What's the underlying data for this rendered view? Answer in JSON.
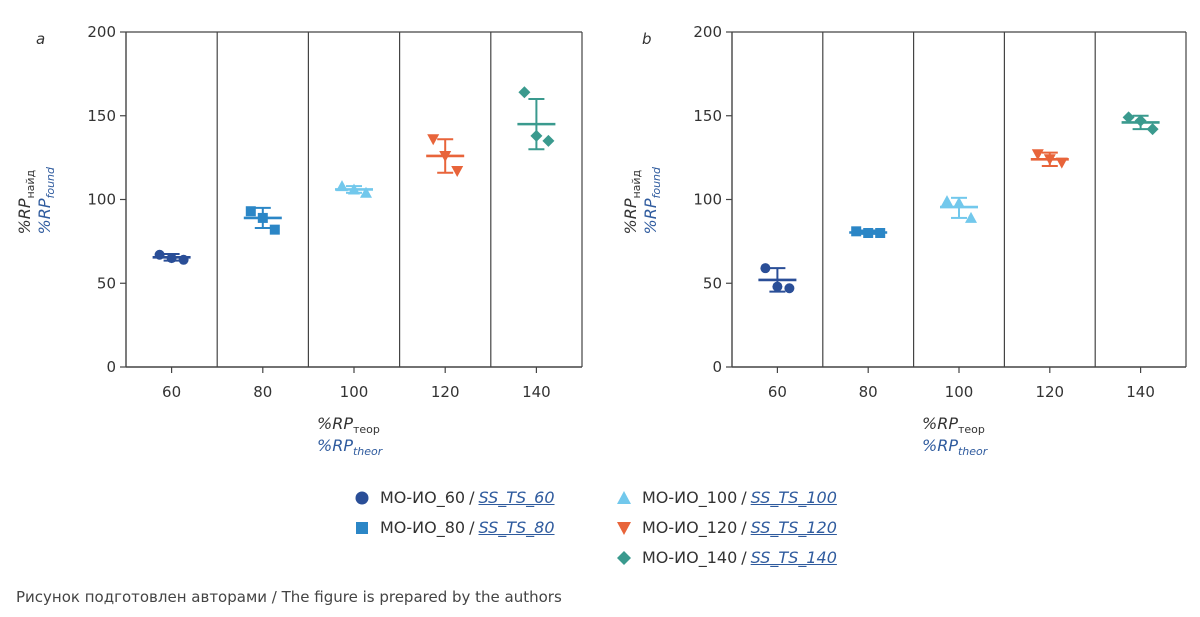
{
  "caption": "Рисунок подготовлен авторами / The figure is prepared by the authors",
  "colors": {
    "s60": "#2a4e97",
    "s80": "#2b86c6",
    "s100": "#72c8ec",
    "s120": "#e8643a",
    "s140": "#3a9a8e",
    "blue_text": "#2f5b9e"
  },
  "legend": [
    {
      "ru": "МО-ИО_60",
      "sep": "/",
      "en": "SS_TS_60",
      "icon": "circle-icon",
      "color": "#2a4e97"
    },
    {
      "ru": "МО-ИО_80",
      "sep": "/",
      "en": "SS_TS_80",
      "icon": "square-icon",
      "color": "#2b86c6"
    },
    {
      "ru": "МО-ИО_100",
      "sep": "/",
      "en": "SS_TS_100",
      "icon": "triangle-up-icon",
      "color": "#72c8ec"
    },
    {
      "ru": "МО-ИО_120",
      "sep": "/",
      "en": "SS_TS_120",
      "icon": "triangle-down-icon",
      "color": "#e8643a"
    },
    {
      "ru": "МО-ИО_140",
      "sep": "/",
      "en": "SS_TS_140",
      "icon": "diamond-icon",
      "color": "#3a9a8e"
    }
  ],
  "chart_data": [
    {
      "type": "scatter",
      "panel_label": "a",
      "ylabel_ru": {
        "base": "%RP",
        "sub": "найд"
      },
      "ylabel_en": {
        "base": "%RP",
        "sub": "found"
      },
      "xlabel_ru": {
        "base": "%RP",
        "sub": "теор"
      },
      "xlabel_en": {
        "base": "%RP",
        "sub": "theor"
      },
      "ylim": [
        0,
        200
      ],
      "yticks": [
        0,
        50,
        100,
        150,
        200
      ],
      "categories": [
        "60",
        "80",
        "100",
        "120",
        "140"
      ],
      "series": [
        {
          "marker": "circle",
          "color": "#2a4e97",
          "points": [
            67,
            65,
            64
          ],
          "mean": 65.5,
          "err": [
            63.5,
            67.5
          ]
        },
        {
          "marker": "square",
          "color": "#2b86c6",
          "points": [
            93,
            89,
            82
          ],
          "mean": 89,
          "err": [
            83,
            95
          ]
        },
        {
          "marker": "triangle-up",
          "color": "#72c8ec",
          "points": [
            108,
            106,
            104
          ],
          "mean": 106,
          "err": [
            104,
            108
          ]
        },
        {
          "marker": "triangle-down",
          "color": "#e8643a",
          "points": [
            136,
            126,
            117
          ],
          "mean": 126,
          "err": [
            116,
            136
          ]
        },
        {
          "marker": "diamond",
          "color": "#3a9a8e",
          "points": [
            164,
            138,
            135
          ],
          "mean": 145,
          "err": [
            130,
            160
          ]
        }
      ]
    },
    {
      "type": "scatter",
      "panel_label": "b",
      "ylabel_ru": {
        "base": "%RP",
        "sub": "найд"
      },
      "ylabel_en": {
        "base": "%RP",
        "sub": "found"
      },
      "xlabel_ru": {
        "base": "%RP",
        "sub": "теор"
      },
      "xlabel_en": {
        "base": "%RP",
        "sub": "theor"
      },
      "ylim": [
        0,
        200
      ],
      "yticks": [
        0,
        50,
        100,
        150,
        200
      ],
      "categories": [
        "60",
        "80",
        "100",
        "120",
        "140"
      ],
      "series": [
        {
          "marker": "circle",
          "color": "#2a4e97",
          "points": [
            59,
            48,
            47
          ],
          "mean": 52,
          "err": [
            45,
            59
          ]
        },
        {
          "marker": "square",
          "color": "#2b86c6",
          "points": [
            81,
            80,
            80
          ],
          "mean": 80.3,
          "err": [
            79.5,
            81.5
          ]
        },
        {
          "marker": "triangle-up",
          "color": "#72c8ec",
          "points": [
            99,
            98,
            89
          ],
          "mean": 95.5,
          "err": [
            89,
            101
          ]
        },
        {
          "marker": "triangle-down",
          "color": "#e8643a",
          "points": [
            127,
            124,
            122
          ],
          "mean": 124,
          "err": [
            120,
            128
          ]
        },
        {
          "marker": "diamond",
          "color": "#3a9a8e",
          "points": [
            149,
            147,
            142
          ],
          "mean": 146,
          "err": [
            142,
            150
          ]
        }
      ]
    }
  ]
}
